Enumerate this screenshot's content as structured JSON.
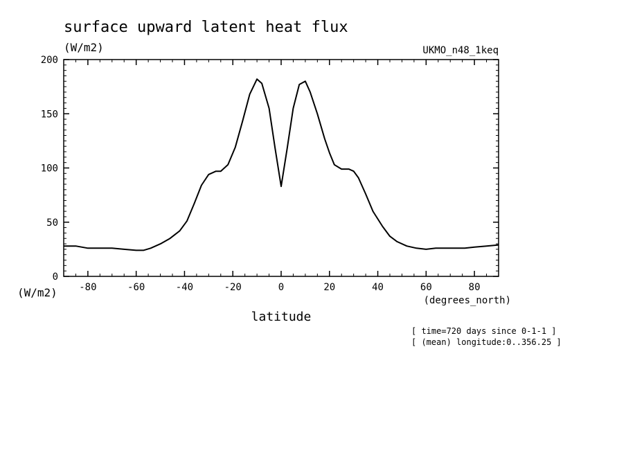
{
  "chart_data": {
    "type": "line",
    "title": "surface upward latent heat flux",
    "units_label": "(W/m2)",
    "y_axis_units": "(W/m2)",
    "model_label": "UKMO_n48_1keq",
    "xlabel": "latitude",
    "x_units": "(degrees_north)",
    "notes": [
      "[ time=720 days since 0-1-1 ]",
      "[ (mean) longitude:0..356.25 ]"
    ],
    "xlim": [
      -90,
      90
    ],
    "ylim": [
      0,
      200
    ],
    "x_ticks": [
      -80,
      -60,
      -40,
      -20,
      0,
      20,
      40,
      60,
      80
    ],
    "x_tick_labels": [
      "-80",
      "-60",
      "-40",
      "-20",
      "0",
      "20",
      "40",
      "60",
      "80"
    ],
    "y_ticks": [
      0,
      50,
      100,
      150,
      200
    ],
    "y_tick_labels": [
      "0",
      "50",
      "100",
      "150",
      "200"
    ],
    "series": [
      {
        "x": [
          -90,
          -85,
          -80,
          -75,
          -70,
          -65,
          -60,
          -57,
          -54,
          -50,
          -46,
          -42,
          -39,
          -36,
          -33,
          -30,
          -27,
          -25,
          -22,
          -19,
          -16,
          -13,
          -10,
          -8,
          -5,
          -2.5,
          0,
          2.5,
          5,
          7.5,
          10,
          12,
          15,
          18,
          20,
          22,
          25,
          28,
          30,
          32,
          35,
          38,
          42,
          45,
          48,
          52,
          56,
          60,
          64,
          68,
          72,
          76,
          80,
          85,
          90
        ],
        "y": [
          28,
          28,
          26,
          26,
          26,
          25,
          24,
          24,
          26,
          30,
          35,
          42,
          51,
          67,
          84,
          94,
          97,
          97,
          103,
          119,
          143,
          168,
          182,
          178,
          155,
          118,
          83,
          118,
          155,
          177,
          180,
          170,
          150,
          127,
          114,
          103,
          99,
          99,
          97,
          91,
          76,
          60,
          46,
          37,
          32,
          28,
          26,
          25,
          26,
          26,
          26,
          26,
          27,
          28,
          29
        ]
      }
    ]
  }
}
